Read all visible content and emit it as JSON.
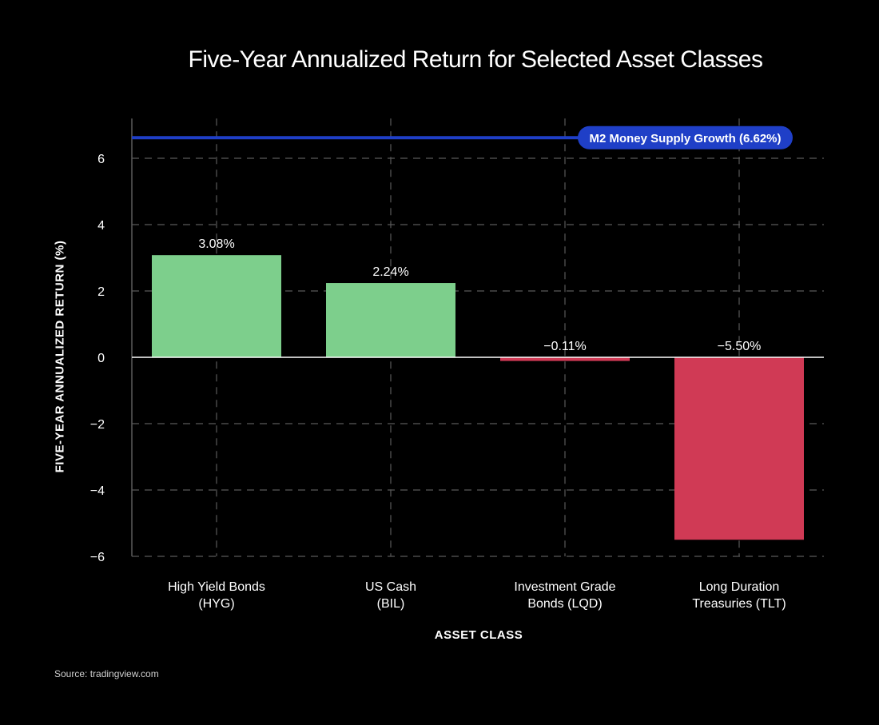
{
  "chart_data": {
    "type": "bar",
    "title": "Five-Year Annualized Return for Selected Asset Classes",
    "xlabel": "ASSET CLASS",
    "ylabel": "FIVE-YEAR ANNUALIZED RETURN (%)",
    "categories": [
      [
        "High Yield Bonds",
        "(HYG)"
      ],
      [
        "US Cash",
        "(BIL)"
      ],
      [
        "Investment Grade",
        "Bonds (LQD)"
      ],
      [
        "Long Duration",
        "Treasuries (TLT)"
      ]
    ],
    "values": [
      3.08,
      2.24,
      -0.11,
      -5.5
    ],
    "data_labels": [
      "3.08%",
      "2.24%",
      "−0.11%",
      "−5.50%"
    ],
    "ylim": [
      -6,
      7.2
    ],
    "yticks": [
      6,
      4,
      2,
      0,
      -2,
      -4,
      -6
    ],
    "ytick_labels": [
      "6",
      "4",
      "2",
      "0",
      "−2",
      "−4",
      "−6"
    ],
    "grid": true,
    "reference_line": {
      "value": 6.62,
      "label": "M2 Money Supply Growth (6.62%)",
      "color": "#1f3fc7"
    },
    "colors": {
      "positive": "#7dcf8c",
      "negative": "#d03a55",
      "grid": "#5a5a5a",
      "axis": "#ffffff",
      "background": "#000000"
    }
  },
  "source": "Source: tradingview.com"
}
